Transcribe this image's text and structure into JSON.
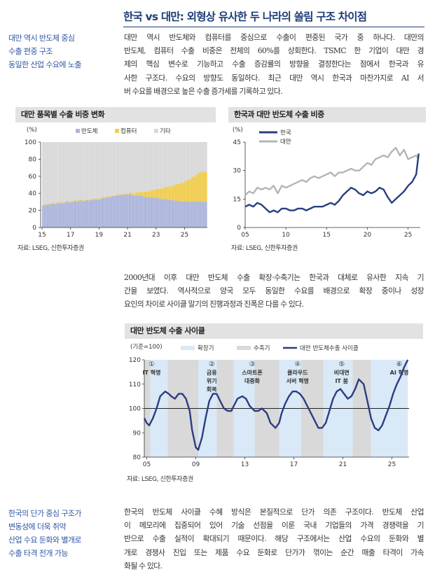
{
  "page": {
    "title": "한국 vs 대만: 외형상 유사한 두 나라의 쏠림 구조 차이점"
  },
  "section1": {
    "side_note": [
      "대만 역시 반도체 중심",
      "수출 편중 구조",
      "동일한 산업 수요에 노출"
    ],
    "body_lines": [
      "대만 역시 반도체와 컴퓨터를 중심으로 수출이 편중된 국가 중 하나다. 대만의",
      "반도체, 컴퓨터 수출 비중은 전체의 60%를 상회한다. TSMC 한 기업이 대만 경",
      "제의 핵심 변수로 기능하고 수출 증감률의 방향을 결정한다는 점에서 한국과 유",
      "사한 구조다. 수요의 방향도 동일하다. 최근 대만 역시 한국과 마찬가지로 AI 서",
      "버 수요를 배경으로 높은 수출 증가세를 기록하고 있다."
    ]
  },
  "section2": {
    "body_lines": [
      "2000년대 이후 대만 반도체 수출 확장·수축기는 한국과 대체로 유사한 지속 기",
      "간을 보였다. 역사적으로 양국 모두 동일한 수요를 배경으로 확장 중이나 성장",
      "요인의 차이로 사이클 말기의 진행과정과 진폭은 다를 수 있다."
    ]
  },
  "section3": {
    "side_note": [
      "한국의 단가 중심 구조가",
      "변동성에 더욱 취약",
      "산업 수요 둔화와 별개로",
      "수출 타격 전개 가능"
    ],
    "body_lines": [
      "한국의 반도체 사이클 수혜 방식은 본질적으로 단가 의존 구조이다. 반도체 산업",
      "이 메모리에 집중되어 있어 기술 선점을 이룬 국내 기업들의 가격 경쟁력을 기",
      "반으로 수출 실적이 확대되기 때문이다. 해당 구조에서는 산업 수요의 둔화와 별",
      "개로 경쟁사 진입 또는 제품 수요 둔화로 단가가 꺾이는 순간 매출 타격이 가속",
      "화될 수 있다."
    ]
  },
  "colors": {
    "title": "#1d3c78",
    "side_note": "#2f56a3",
    "korea_line": "#2b3d82",
    "taiwan_line": "#b5b5b5",
    "semiconductor_bar": "#aeb6dc",
    "computer_bar": "#f0cd52",
    "other_bar": "#d9d9d9",
    "expansion_shade": "#d9e9f7",
    "contraction_shade": "#d9d9d9"
  },
  "chart_data": [
    {
      "type": "bar",
      "title": "대만 품목별 수출 비중 변화",
      "unit_label": "(%)",
      "legend": [
        "반도체",
        "컴퓨터",
        "기타"
      ],
      "legend_position": "top",
      "stacked": true,
      "x_ticks": [
        "15",
        "17",
        "19",
        "21",
        "23",
        "25"
      ],
      "y_ticks": [
        "0",
        "20",
        "40",
        "60",
        "80",
        "100"
      ],
      "ylim": [
        0,
        100
      ],
      "x_start": 2015.0,
      "x_step_months": 1,
      "series": [
        {
          "name": "반도체",
          "values": [
            25,
            26,
            26,
            27,
            26,
            27,
            27,
            27,
            28,
            28,
            27,
            28,
            28,
            29,
            28,
            29,
            29,
            28,
            29,
            29,
            30,
            30,
            30,
            29,
            30,
            30,
            30,
            31,
            31,
            30,
            31,
            31,
            32,
            31,
            31,
            31,
            31,
            32,
            32,
            31,
            32,
            32,
            33,
            32,
            33,
            33,
            32,
            33,
            33,
            33,
            34,
            35,
            34,
            35,
            35,
            36,
            35,
            36,
            36,
            37,
            36,
            37,
            37,
            38,
            37,
            38,
            38,
            38,
            39,
            38,
            39,
            39,
            38,
            39,
            39,
            38,
            38,
            37,
            37,
            38,
            37,
            37,
            38,
            37,
            37,
            36,
            36,
            36,
            35,
            36,
            35,
            35,
            36,
            35,
            35,
            34,
            35,
            34,
            34,
            33,
            34,
            33,
            33,
            34,
            33,
            33,
            32,
            33,
            32,
            32,
            31,
            32,
            31,
            32,
            31,
            31,
            30,
            31,
            30,
            30,
            31,
            30,
            31,
            30,
            30,
            30,
            31,
            30,
            30,
            31,
            30,
            31,
            30,
            30,
            31,
            30,
            30,
            31,
            30
          ]
        },
        {
          "name": "컴퓨터",
          "values": [
            1,
            1,
            1,
            1,
            1,
            1,
            1,
            1,
            1,
            1,
            1,
            1,
            1,
            1,
            1,
            1,
            1,
            1,
            1,
            1,
            1,
            1,
            1,
            1,
            1,
            1,
            1,
            1,
            1,
            1,
            1,
            1,
            1,
            1,
            1,
            1,
            1,
            1,
            1,
            1,
            1,
            1,
            1,
            1,
            1,
            1,
            1,
            1,
            1,
            1,
            1,
            1,
            1,
            1,
            1,
            1,
            1,
            1,
            1,
            1,
            1,
            1,
            1,
            1,
            1,
            1,
            1,
            1,
            1,
            1,
            1,
            1,
            1,
            2,
            2,
            2,
            2,
            3,
            3,
            3,
            4,
            4,
            4,
            5,
            5,
            5,
            6,
            6,
            7,
            7,
            7,
            8,
            8,
            9,
            9,
            10,
            10,
            11,
            11,
            12,
            12,
            13,
            13,
            14,
            14,
            15,
            15,
            16,
            16,
            17,
            17,
            18,
            19,
            19,
            20,
            20,
            21,
            22,
            22,
            23,
            24,
            24,
            25,
            26,
            26,
            27,
            28,
            29,
            30,
            31,
            32,
            33,
            34,
            34,
            35,
            35,
            35,
            35,
            35
          ]
        },
        {
          "name": "기타",
          "remainder_of": 100
        }
      ]
    },
    {
      "type": "line",
      "title": "한국과 대만 반도체 수출 비중",
      "unit_label": "(%)",
      "legend": [
        "한국",
        "대만"
      ],
      "legend_position": "top-left",
      "x_ticks": [
        "05",
        "10",
        "15",
        "20",
        "25"
      ],
      "y_ticks": [
        "0",
        "15",
        "30",
        "45"
      ],
      "ylim": [
        0,
        45
      ],
      "x": [
        2005.0,
        2005.5,
        2006.0,
        2006.5,
        2007.0,
        2007.5,
        2008.0,
        2008.5,
        2009.0,
        2009.5,
        2010.0,
        2010.5,
        2011.0,
        2011.5,
        2012.0,
        2012.5,
        2013.0,
        2013.5,
        2014.0,
        2014.5,
        2015.0,
        2015.5,
        2016.0,
        2016.5,
        2017.0,
        2017.5,
        2018.0,
        2018.5,
        2019.0,
        2019.5,
        2020.0,
        2020.5,
        2021.0,
        2021.5,
        2022.0,
        2022.5,
        2023.0,
        2023.5,
        2024.0,
        2024.5,
        2025.0,
        2025.5,
        2026.0,
        2026.3
      ],
      "series": [
        {
          "name": "한국",
          "values": [
            11,
            12,
            11,
            13,
            12,
            10,
            8,
            9,
            8,
            10,
            10,
            9,
            9,
            10,
            10,
            9,
            10,
            11,
            11,
            11,
            12,
            13,
            12,
            14,
            17,
            19,
            21,
            20,
            18,
            17,
            19,
            18,
            19,
            21,
            20,
            16,
            13,
            15,
            17,
            19,
            22,
            24,
            28,
            39
          ]
        },
        {
          "name": "대만",
          "values": [
            17,
            19,
            18,
            21,
            20,
            21,
            20,
            22,
            18,
            22,
            21,
            22,
            23,
            24,
            25,
            24,
            26,
            27,
            26,
            27,
            28,
            29,
            27,
            29,
            29,
            30,
            31,
            30,
            30,
            32,
            34,
            33,
            36,
            37,
            38,
            37,
            40,
            42,
            38,
            41,
            36,
            37,
            38,
            36
          ]
        }
      ]
    },
    {
      "type": "line",
      "title": "대만 반도체 수출 사이클",
      "unit_label": "(기준=100)",
      "legend": [
        "확장기",
        "수축기",
        "대만 반도체수출 사이클"
      ],
      "legend_position": "top",
      "x_ticks": [
        "05",
        "09",
        "13",
        "17",
        "21",
        "25"
      ],
      "y_ticks": [
        "80",
        "90",
        "100",
        "110",
        "120"
      ],
      "ylim": [
        80,
        120
      ],
      "baseline": 100,
      "expansion_periods": [
        [
          2005.3,
          2006.7
        ],
        [
          2009.2,
          2010.7
        ],
        [
          2012.1,
          2013.8
        ],
        [
          2015.8,
          2017.6
        ],
        [
          2019.4,
          2021.8
        ],
        [
          2023.3,
          2026.3
        ]
      ],
      "contraction_periods": [
        [
          2004.8,
          2005.3
        ],
        [
          2006.7,
          2009.2
        ],
        [
          2010.7,
          2012.1
        ],
        [
          2013.8,
          2015.8
        ],
        [
          2017.6,
          2019.4
        ],
        [
          2021.8,
          2023.3
        ]
      ],
      "annotations": [
        {
          "number": "①",
          "label": [
            "IT 혁명"
          ],
          "x": 2005.4
        },
        {
          "number": "②",
          "label": [
            "금융",
            "위기",
            "회복"
          ],
          "x": 2010.3
        },
        {
          "number": "③",
          "label": [
            "스마트폰",
            "대중화"
          ],
          "x": 2013.6
        },
        {
          "number": "④",
          "label": [
            "클라우드",
            "서버 혁명"
          ],
          "x": 2017.3
        },
        {
          "number": "⑤",
          "label": [
            "비대면",
            "IT 붐"
          ],
          "x": 2020.9
        },
        {
          "number": "⑥",
          "label": [
            "AI 혁명"
          ],
          "x": 2025.6
        }
      ],
      "x": [
        2004.8,
        2005.0,
        2005.2,
        2005.5,
        2005.8,
        2006.1,
        2006.5,
        2006.8,
        2007.0,
        2007.3,
        2007.6,
        2007.9,
        2008.2,
        2008.5,
        2008.7,
        2009.0,
        2009.2,
        2009.5,
        2009.8,
        2010.1,
        2010.4,
        2010.7,
        2011.0,
        2011.3,
        2011.6,
        2011.9,
        2012.1,
        2012.4,
        2012.8,
        2013.1,
        2013.4,
        2013.8,
        2014.1,
        2014.4,
        2014.8,
        2015.1,
        2015.5,
        2015.8,
        2016.0,
        2016.3,
        2016.6,
        2016.9,
        2017.2,
        2017.5,
        2017.8,
        2018.1,
        2018.4,
        2018.7,
        2019.0,
        2019.3,
        2019.6,
        2019.9,
        2020.2,
        2020.5,
        2020.8,
        2021.1,
        2021.4,
        2021.7,
        2022.0,
        2022.3,
        2022.7,
        2023.0,
        2023.3,
        2023.6,
        2023.9,
        2024.2,
        2024.5,
        2024.8,
        2025.1,
        2025.4,
        2025.7,
        2026.0,
        2026.3
      ],
      "series": [
        {
          "name": "대만 반도체수출 사이클",
          "values": [
            96,
            94,
            93,
            96,
            100,
            105,
            107,
            106,
            105,
            104,
            106,
            106,
            104,
            99,
            91,
            84,
            83,
            88,
            96,
            103,
            106,
            106,
            103,
            100,
            99,
            99,
            101,
            104,
            105,
            104,
            101,
            99,
            99,
            100,
            98,
            94,
            92,
            94,
            98,
            102,
            105,
            107,
            107,
            106,
            104,
            101,
            98,
            95,
            92,
            92,
            94,
            99,
            104,
            107,
            108,
            106,
            104,
            105,
            108,
            112,
            110,
            103,
            96,
            92,
            91,
            93,
            97,
            101,
            106,
            110,
            113,
            117,
            120
          ]
        }
      ]
    }
  ],
  "sources": {
    "chart1": "자료: LSEG, 신한투자증권",
    "chart2": "자료: LSEG, 신한투자증권",
    "chart3": "자료: LSEG, 신한투자증권"
  }
}
